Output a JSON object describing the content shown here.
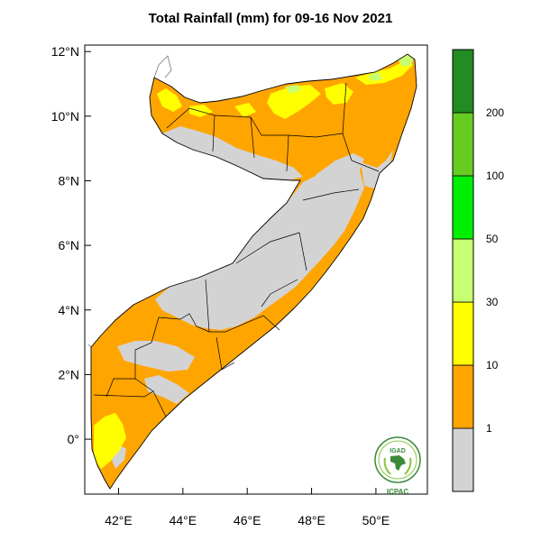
{
  "title": "Total Rainfall (mm) for 09-16 Nov 2021",
  "axes": {
    "lat_ticks": [
      "12°N",
      "10°N",
      "8°N",
      "6°N",
      "4°N",
      "2°N",
      "0°"
    ],
    "lon_ticks": [
      "42°E",
      "44°E",
      "46°E",
      "48°E",
      "50°E"
    ],
    "lat_values": [
      12,
      10,
      8,
      6,
      4,
      2,
      0
    ],
    "lon_values": [
      42,
      44,
      46,
      48,
      50
    ],
    "lat_range": [
      -1.7,
      12.2
    ],
    "lon_range": [
      40.95,
      51.6
    ]
  },
  "legend": {
    "labels": [
      "1",
      "10",
      "30",
      "50",
      "100",
      "200"
    ],
    "bins": [
      {
        "label": "< 1",
        "color": "#d3d3d3"
      },
      {
        "label": "1-10",
        "color": "#ffa500"
      },
      {
        "label": "10-30",
        "color": "#ffff00"
      },
      {
        "label": "30-50",
        "color": "#c8ff70"
      },
      {
        "label": "50-100",
        "color": "#00ee00"
      },
      {
        "label": "100-200",
        "color": "#66cc22"
      },
      {
        "label": "> 200",
        "color": "#228b22"
      }
    ]
  },
  "logo": {
    "top": "IGAD",
    "bottom": "ICPAC"
  },
  "colors": {
    "dry": "#d3d3d3",
    "low": "#ffa500",
    "moderate": "#ffff00",
    "border": "#000000"
  }
}
